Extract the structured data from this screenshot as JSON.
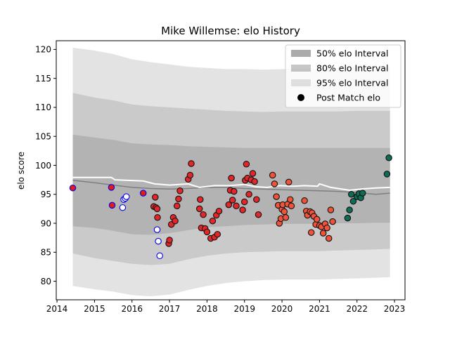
{
  "chart_data": {
    "type": "scatter",
    "title": "Mike Willemse: elo History",
    "xlabel": "",
    "ylabel": "elo score",
    "xlim": [
      2013.98,
      2023.28
    ],
    "ylim": [
      76.8,
      121.5
    ],
    "xticks": [
      2014,
      2015,
      2016,
      2017,
      2018,
      2019,
      2020,
      2021,
      2022,
      2023
    ],
    "yticks": [
      80,
      85,
      90,
      95,
      100,
      105,
      110,
      115,
      120
    ],
    "grid": false,
    "legend_position": "top-right",
    "legend": [
      {
        "label": "50% elo Interval",
        "kind": "band",
        "color": "#b3b3b3"
      },
      {
        "label": "80% elo Interval",
        "kind": "band",
        "color": "#cbcbcb"
      },
      {
        "label": "95% elo Interval",
        "kind": "band",
        "color": "#e3e3e3"
      },
      {
        "label": "Post Match elo",
        "kind": "marker",
        "color": "#000000"
      }
    ],
    "bands": {
      "x": [
        2014.42,
        2015.0,
        2015.5,
        2016.0,
        2016.5,
        2017.0,
        2017.5,
        2018.0,
        2018.5,
        2019.0,
        2019.5,
        2020.0,
        2020.5,
        2021.0,
        2021.5,
        2022.0,
        2022.5,
        2022.88
      ],
      "p95_low": [
        79.2,
        78.6,
        78.2,
        77.6,
        77.4,
        77.7,
        78.5,
        79.2,
        79.7,
        80.0,
        80.2,
        80.3,
        80.3,
        80.3,
        80.4,
        80.5,
        80.6,
        80.7
      ],
      "p95_high": [
        120.3,
        119.8,
        119.2,
        118.3,
        117.8,
        117.4,
        117.0,
        116.8,
        116.6,
        116.6,
        116.5,
        116.6,
        116.7,
        116.7,
        116.7,
        116.8,
        116.9,
        117.0
      ],
      "p80_low": [
        84.8,
        84.0,
        83.5,
        83.0,
        82.8,
        83.0,
        83.8,
        84.4,
        84.8,
        85.0,
        85.1,
        85.2,
        85.2,
        85.2,
        85.3,
        85.4,
        85.5,
        85.6
      ],
      "p80_high": [
        112.5,
        111.7,
        111.2,
        110.5,
        110.2,
        110.0,
        109.8,
        109.6,
        109.4,
        109.3,
        109.2,
        109.3,
        109.3,
        109.3,
        109.3,
        109.4,
        109.4,
        109.4
      ],
      "p50_low": [
        89.5,
        89.2,
        88.7,
        88.1,
        88.0,
        88.3,
        88.8,
        89.3,
        89.5,
        89.7,
        89.8,
        89.9,
        89.9,
        89.9,
        90.0,
        90.0,
        90.1,
        90.1
      ],
      "p50_high": [
        105.3,
        104.8,
        104.4,
        103.8,
        103.6,
        103.5,
        103.3,
        103.2,
        103.1,
        103.0,
        103.0,
        103.0,
        103.0,
        103.0,
        103.0,
        103.0,
        103.0,
        103.0
      ]
    },
    "mean_line": {
      "color": "#7f7f7f",
      "x": [
        2014.42,
        2015.0,
        2015.5,
        2016.0,
        2016.5,
        2017.0,
        2017.5,
        2018.0,
        2018.5,
        2019.0,
        2019.5,
        2020.0,
        2020.5,
        2021.0,
        2021.5,
        2022.0,
        2022.5,
        2022.88
      ],
      "y": [
        97.4,
        97.0,
        96.6,
        96.2,
        96.0,
        95.9,
        96.0,
        96.2,
        96.2,
        96.0,
        95.9,
        95.8,
        95.7,
        95.6,
        95.5,
        95.3,
        95.0,
        95.2
      ]
    },
    "elo_line": {
      "color": "#ffffff",
      "x": [
        2014.42,
        2015.0,
        2015.45,
        2015.55,
        2016.3,
        2016.6,
        2017.0,
        2017.5,
        2017.8,
        2018.2,
        2018.6,
        2019.0,
        2019.3,
        2019.6,
        2019.95,
        2020.3,
        2020.6,
        2020.95,
        2021.0,
        2021.3,
        2021.8,
        2022.1,
        2022.5,
        2022.88
      ],
      "y": [
        97.9,
        97.9,
        97.9,
        97.5,
        97.3,
        96.8,
        96.6,
        96.8,
        96.2,
        96.5,
        96.5,
        96.7,
        96.3,
        96.2,
        96.5,
        96.4,
        96.5,
        96.4,
        96.8,
        96.2,
        95.7,
        95.9,
        96.1,
        96.2
      ]
    },
    "series": [
      {
        "name": "blue",
        "fill": "#ffffff",
        "stroke": "#0000ee",
        "points": [
          [
            2015.75,
            92.7
          ],
          [
            2015.78,
            94.1
          ],
          [
            2015.82,
            94.3
          ],
          [
            2015.85,
            94.6
          ],
          [
            2016.67,
            88.9
          ],
          [
            2016.7,
            86.9
          ],
          [
            2016.74,
            84.4
          ]
        ]
      },
      {
        "name": "red-blue",
        "fill": "#e31a1c",
        "stroke": "#0000ee",
        "points": [
          [
            2014.42,
            96.1
          ],
          [
            2015.45,
            96.2
          ],
          [
            2015.47,
            93.1
          ],
          [
            2016.3,
            95.2
          ]
        ]
      },
      {
        "name": "red",
        "fill": "#e3262a",
        "stroke": "#111111",
        "points": [
          [
            2016.58,
            92.9
          ],
          [
            2016.62,
            94.5
          ],
          [
            2016.64,
            92.7
          ],
          [
            2016.67,
            92.5
          ],
          [
            2016.68,
            91.0
          ],
          [
            2016.98,
            86.5
          ],
          [
            2017.0,
            87.1
          ],
          [
            2017.05,
            89.8
          ],
          [
            2017.1,
            91.0
          ],
          [
            2017.15,
            90.4
          ],
          [
            2017.2,
            93.0
          ],
          [
            2017.24,
            94.2
          ],
          [
            2017.28,
            95.6
          ],
          [
            2017.5,
            97.6
          ],
          [
            2017.55,
            98.3
          ],
          [
            2017.58,
            100.3
          ],
          [
            2017.8,
            92.5
          ],
          [
            2017.82,
            94.1
          ],
          [
            2017.85,
            89.2
          ],
          [
            2017.9,
            91.5
          ],
          [
            2017.95,
            89.1
          ],
          [
            2018.0,
            88.5
          ],
          [
            2018.1,
            87.4
          ],
          [
            2018.15,
            90.4
          ],
          [
            2018.2,
            87.6
          ],
          [
            2018.25,
            91.4
          ],
          [
            2018.28,
            88.1
          ],
          [
            2018.32,
            92.1
          ],
          [
            2018.58,
            93.2
          ],
          [
            2018.62,
            95.7
          ],
          [
            2018.65,
            97.8
          ],
          [
            2018.68,
            94.0
          ],
          [
            2018.72,
            95.5
          ],
          [
            2018.78,
            93.0
          ],
          [
            2018.95,
            92.3
          ],
          [
            2019.0,
            93.7
          ],
          [
            2019.02,
            97.4
          ],
          [
            2019.05,
            100.2
          ],
          [
            2019.08,
            97.8
          ],
          [
            2019.12,
            95.0
          ],
          [
            2019.18,
            97.5
          ],
          [
            2019.22,
            98.6
          ],
          [
            2019.27,
            97.2
          ],
          [
            2019.32,
            94.1
          ],
          [
            2019.37,
            91.5
          ]
        ]
      },
      {
        "name": "orange-red",
        "fill": "#f0533a",
        "stroke": "#111111",
        "points": [
          [
            2019.75,
            98.3
          ],
          [
            2019.8,
            96.8
          ],
          [
            2019.85,
            94.6
          ],
          [
            2019.9,
            93.1
          ],
          [
            2019.93,
            90.0
          ],
          [
            2019.97,
            90.8
          ],
          [
            2020.0,
            92.4
          ],
          [
            2020.02,
            93.2
          ],
          [
            2020.06,
            92.0
          ],
          [
            2020.1,
            91.0
          ],
          [
            2020.15,
            93.3
          ],
          [
            2020.18,
            97.1
          ],
          [
            2020.22,
            94.1
          ],
          [
            2020.25,
            93.0
          ],
          [
            2020.6,
            93.9
          ],
          [
            2020.65,
            92.1
          ],
          [
            2020.68,
            91.4
          ],
          [
            2020.75,
            92.0
          ],
          [
            2020.8,
            91.8
          ],
          [
            2020.85,
            91.2
          ],
          [
            2020.9,
            89.8
          ],
          [
            2020.93,
            90.7
          ],
          [
            2021.0,
            89.6
          ],
          [
            2021.05,
            89.4
          ],
          [
            2021.1,
            88.3
          ],
          [
            2021.15,
            89.9
          ],
          [
            2021.2,
            89.2
          ],
          [
            2021.25,
            87.4
          ],
          [
            2021.3,
            92.3
          ],
          [
            2021.35,
            90.3
          ],
          [
            2020.78,
            88.4
          ]
        ]
      },
      {
        "name": "green",
        "fill": "#0e6b55",
        "stroke": "#111111",
        "points": [
          [
            2021.75,
            90.9
          ],
          [
            2021.8,
            92.3
          ],
          [
            2021.85,
            95.0
          ],
          [
            2021.9,
            93.8
          ],
          [
            2022.0,
            94.6
          ],
          [
            2022.05,
            95.1
          ],
          [
            2022.1,
            94.4
          ],
          [
            2022.15,
            95.2
          ],
          [
            2022.8,
            98.5
          ],
          [
            2022.85,
            101.3
          ]
        ]
      }
    ]
  }
}
